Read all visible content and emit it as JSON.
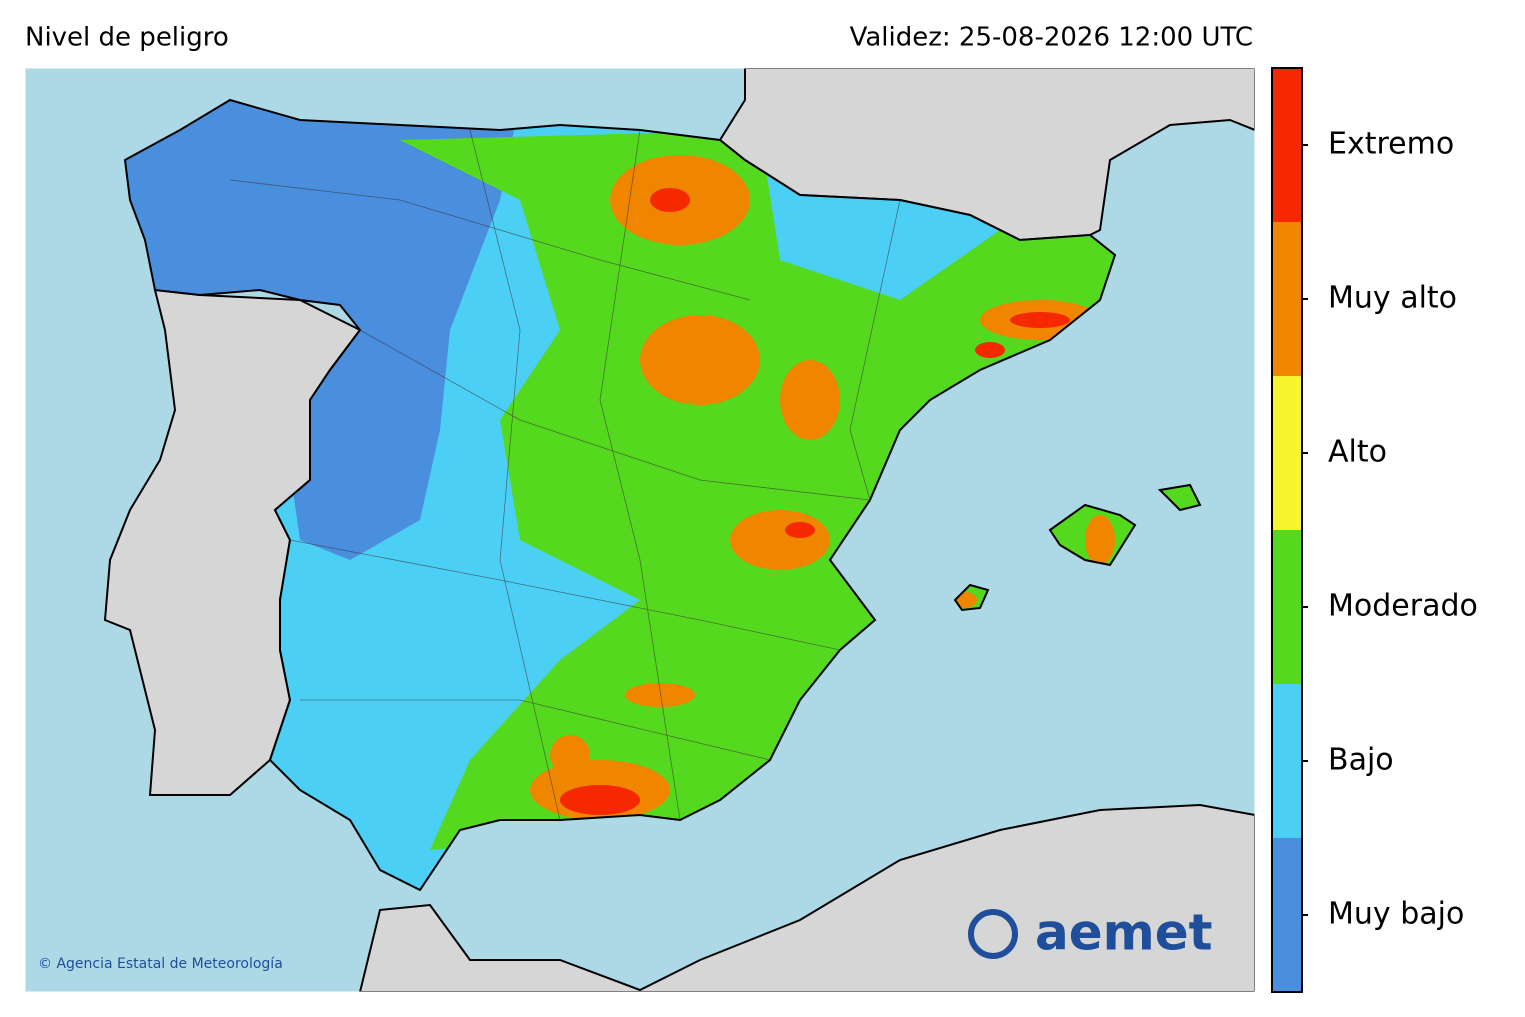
{
  "header": {
    "title": "Nivel de peligro",
    "validity": "Validez: 25-08-2026 12:00 UTC"
  },
  "legend": {
    "levels": [
      {
        "name": "Muy bajo",
        "color": "#4a8ede"
      },
      {
        "name": "Bajo",
        "color": "#4ccff5"
      },
      {
        "name": "Moderado",
        "color": "#55d91e"
      },
      {
        "name": "Alto",
        "color": "#f8f530"
      },
      {
        "name": "Muy alto",
        "color": "#f08500"
      },
      {
        "name": "Extremo",
        "color": "#f52800"
      }
    ]
  },
  "map": {
    "sea_color": "#add8e6",
    "land_color": "#d6d6d6"
  },
  "footer": {
    "copyright": "© Agencia Estatal de Meteorología",
    "logo": "aemet"
  }
}
